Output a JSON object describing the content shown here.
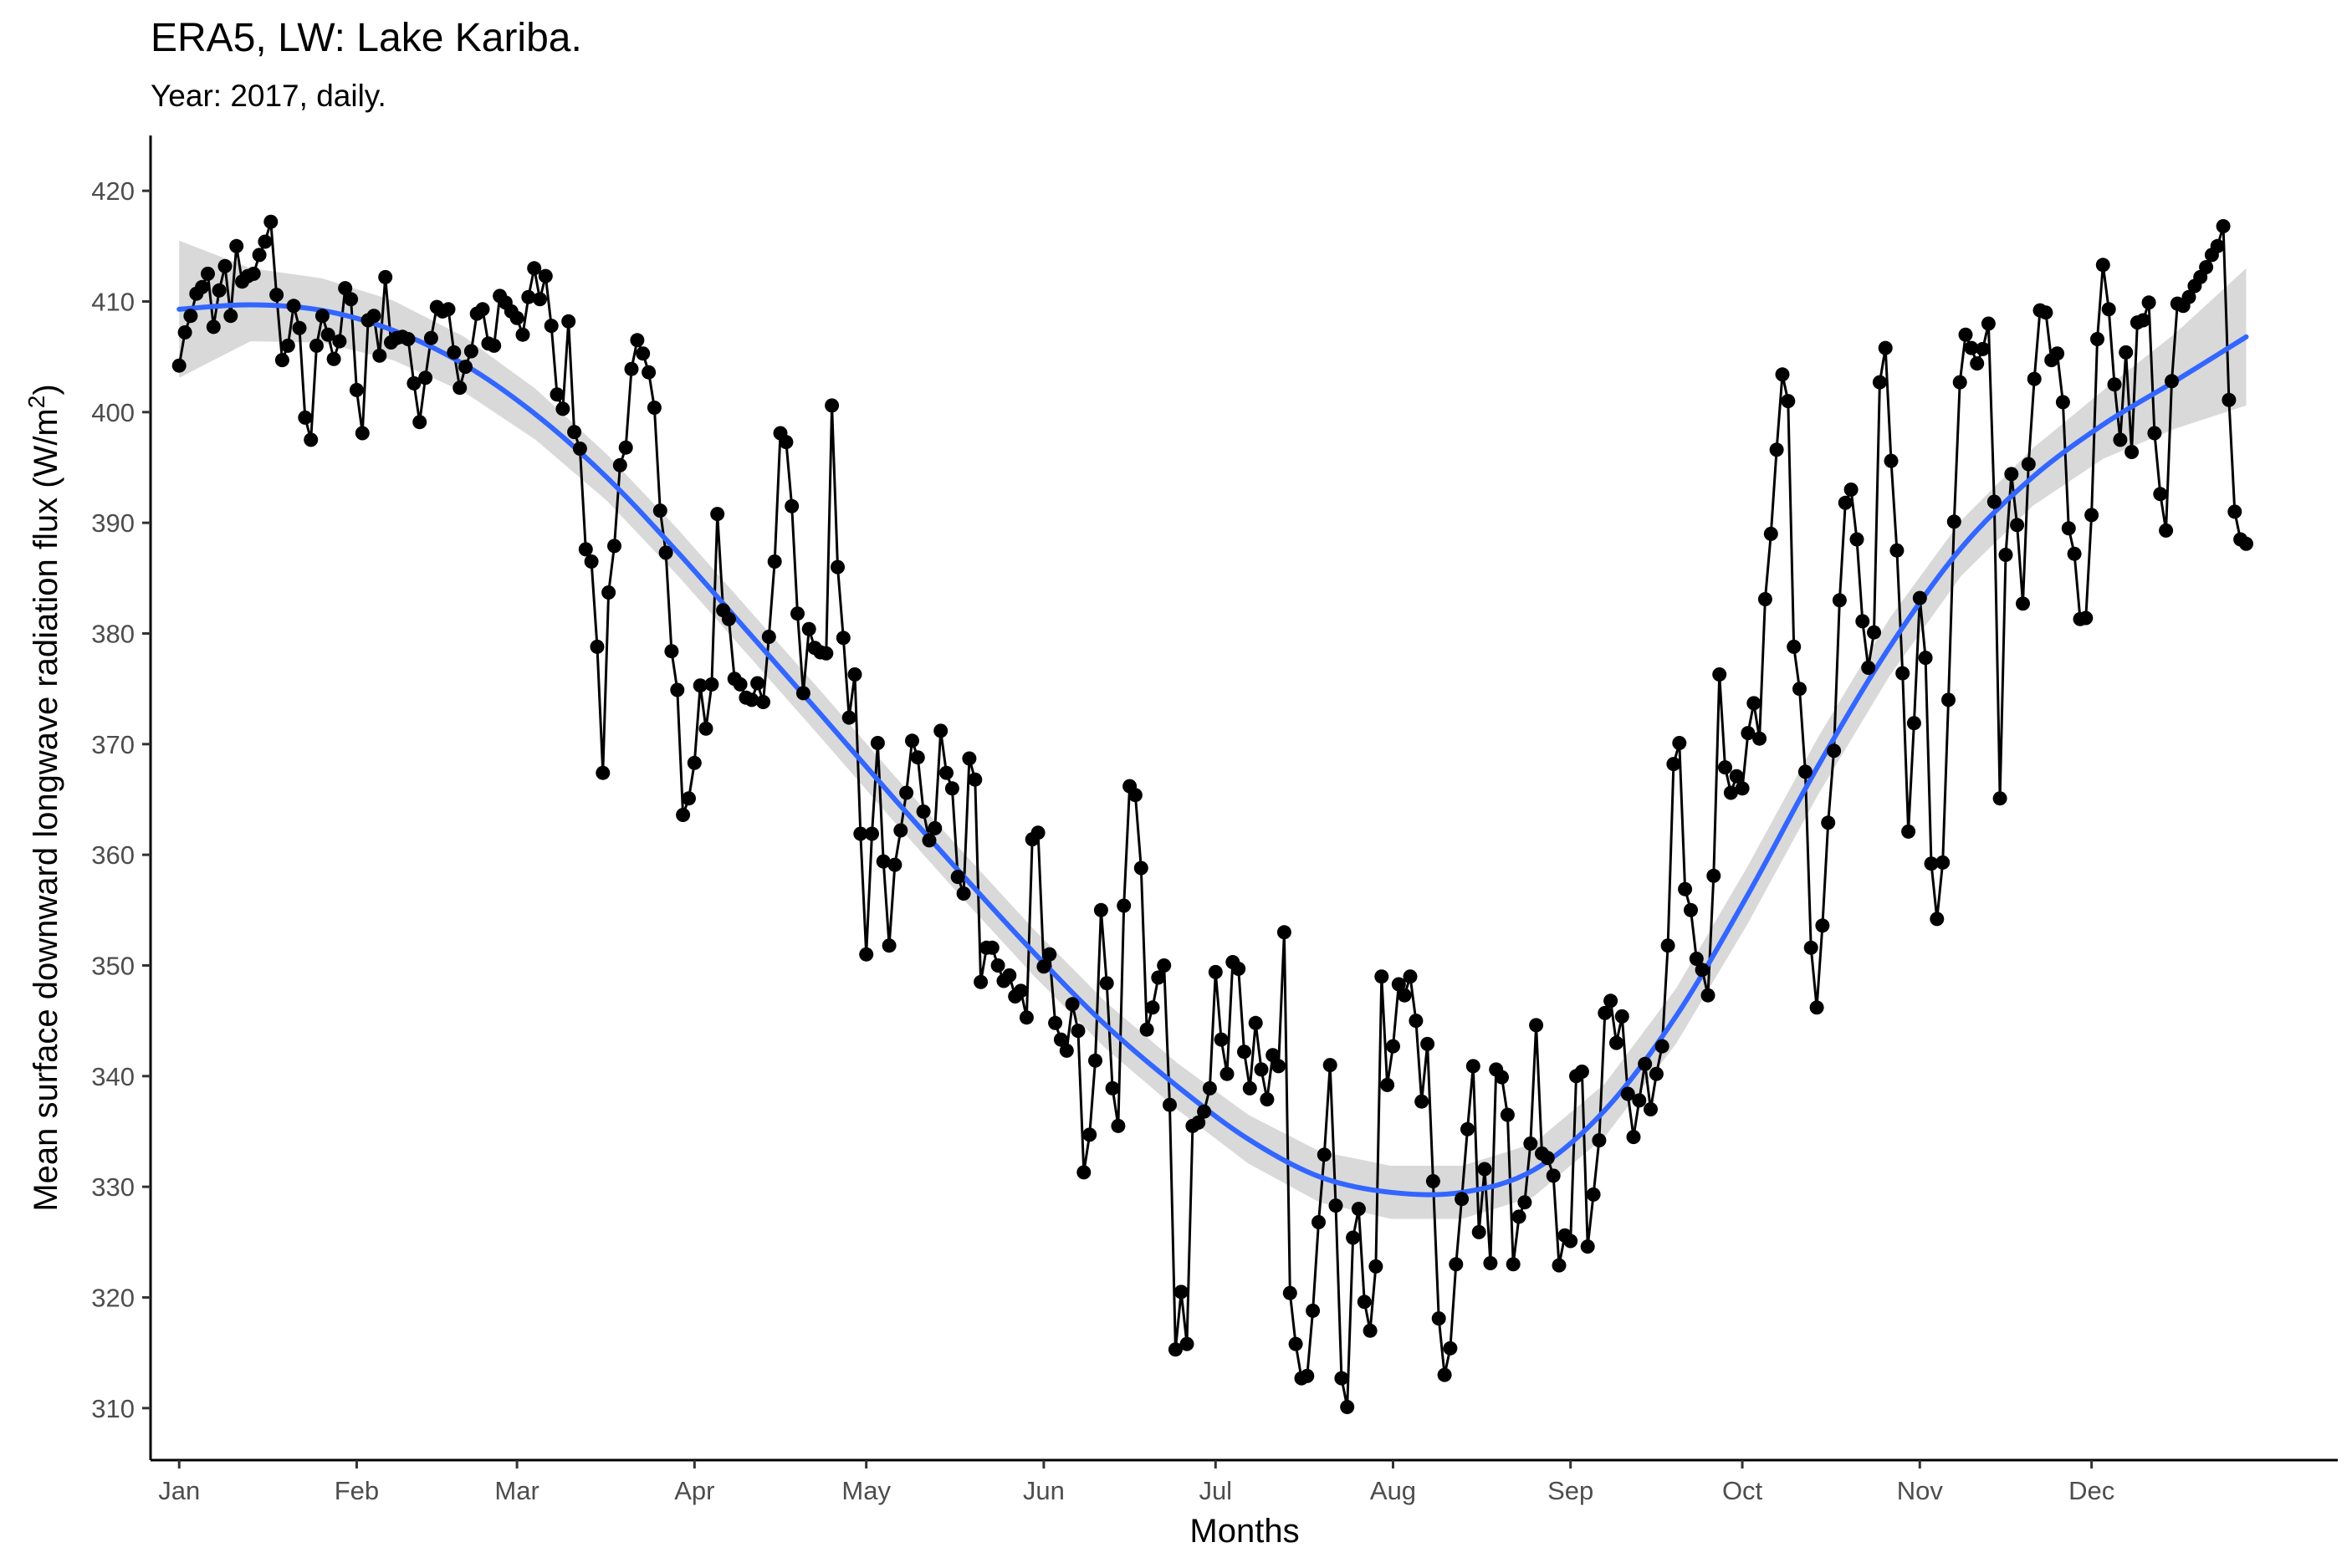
{
  "chart_data": {
    "type": "line",
    "title": "ERA5, LW: Lake Kariba.",
    "subtitle": "Year: 2017, daily.",
    "xlabel": "Months",
    "ylabel_main": "Mean surface downward longwave radiation flux (W/m",
    "ylabel_sup": "2",
    "ylabel_end": ")",
    "x_ticks": [
      "Jan",
      "Feb",
      "Mar",
      "Apr",
      "May",
      "Jun",
      "Jul",
      "Aug",
      "Sep",
      "Oct",
      "Nov",
      "Dec"
    ],
    "y_ticks": [
      310,
      320,
      330,
      340,
      350,
      360,
      370,
      380,
      390,
      400,
      410,
      420
    ],
    "ylim": [
      305.3,
      425.0
    ],
    "x_unit": "day of year 2017",
    "xlim": [
      -5,
      377
    ],
    "grid": false,
    "legend": "none",
    "colors": {
      "observed": "#000000",
      "smooth": "#3366ff",
      "band": "#d9d9d9"
    },
    "series": [
      {
        "values": [
          404.2,
          407.2,
          408.7,
          410.7,
          411.3,
          412.5,
          407.7,
          411.0,
          413.2,
          408.7,
          415.0,
          411.8,
          412.3,
          412.5,
          414.2,
          415.4,
          417.2,
          410.6,
          404.7,
          406.0,
          409.6,
          407.6,
          399.5,
          397.5,
          406.0,
          408.7,
          407.0,
          404.8,
          406.4,
          411.2,
          410.2,
          402.0,
          398.1,
          408.3,
          408.7,
          405.1,
          412.2,
          406.3,
          406.7,
          406.8,
          406.6,
          402.6,
          399.1,
          403.1,
          406.7,
          409.5,
          409.1,
          409.3,
          405.4,
          402.2,
          404.1,
          405.5,
          408.9,
          409.3,
          406.2,
          406.0,
          410.5,
          409.9,
          409.1,
          408.5,
          407.0,
          410.4,
          413.0,
          410.2,
          412.3,
          407.8,
          401.6,
          400.3,
          408.2,
          398.2,
          396.7,
          387.6,
          386.5,
          378.8,
          367.4,
          383.7,
          387.9,
          395.2,
          396.8,
          403.9,
          406.5,
          405.3,
          403.6,
          400.4,
          391.1,
          387.3,
          378.4,
          374.9,
          363.6,
          365.1,
          368.3,
          375.3,
          371.4,
          375.4,
          390.8,
          382.1,
          381.3,
          375.9,
          375.4,
          374.2,
          374.0,
          375.5,
          373.8,
          379.7,
          386.5,
          398.1,
          397.3,
          391.5,
          381.8,
          374.6,
          380.4,
          378.7,
          378.3,
          378.2,
          400.6,
          386.0,
          379.6,
          372.4,
          376.3,
          361.9,
          351.0,
          361.9,
          370.1,
          359.4,
          351.8,
          359.1,
          362.2,
          365.6,
          370.3,
          368.8,
          363.9,
          361.3,
          362.4,
          371.2,
          367.4,
          366.0,
          358.0,
          356.5,
          368.7,
          366.8,
          348.5,
          351.6,
          351.6,
          350.0,
          348.6,
          349.1,
          347.2,
          347.7,
          345.3,
          361.4,
          362.0,
          349.9,
          351.0,
          344.8,
          343.3,
          342.3,
          346.5,
          344.1,
          331.3,
          334.7,
          341.4,
          355.0,
          348.4,
          338.9,
          335.5,
          355.4,
          366.2,
          365.4,
          358.8,
          344.2,
          346.2,
          348.9,
          350.0,
          337.4,
          315.3,
          320.5,
          315.8,
          335.5,
          335.8,
          336.8,
          338.9,
          349.4,
          343.3,
          340.2,
          350.3,
          349.7,
          342.2,
          338.9,
          344.8,
          340.6,
          337.9,
          341.9,
          340.9,
          353.0,
          320.4,
          315.8,
          312.7,
          312.9,
          318.8,
          326.8,
          332.9,
          341.0,
          328.3,
          312.7,
          310.1,
          325.4,
          328.0,
          319.6,
          317.0,
          322.8,
          349.0,
          339.2,
          342.7,
          348.3,
          347.3,
          349.0,
          345.0,
          337.7,
          342.9,
          330.5,
          318.1,
          313.0,
          315.4,
          323.0,
          328.9,
          335.2,
          340.9,
          325.9,
          331.6,
          323.1,
          340.6,
          339.9,
          336.5,
          323.0,
          327.3,
          328.6,
          333.9,
          344.6,
          333.0,
          332.6,
          331.0,
          322.9,
          325.6,
          325.1,
          340.0,
          340.4,
          324.6,
          329.3,
          334.2,
          345.7,
          346.8,
          343.0,
          345.4,
          338.4,
          334.5,
          337.8,
          341.1,
          337.0,
          340.2,
          342.7,
          351.8,
          368.2,
          370.1,
          356.9,
          355.0,
          350.6,
          349.6,
          347.3,
          358.1,
          376.3,
          367.9,
          365.6,
          367.1,
          366.0,
          371.0,
          373.7,
          370.5,
          383.1,
          389.0,
          396.6,
          403.4,
          401.0,
          378.8,
          375.0,
          367.5,
          351.6,
          346.2,
          353.6,
          362.9,
          369.4,
          383.0,
          391.8,
          393.0,
          388.5,
          381.1,
          376.9,
          380.1,
          402.7,
          405.8,
          395.6,
          387.5,
          376.4,
          362.1,
          371.9,
          383.2,
          377.8,
          359.2,
          354.2,
          359.3,
          374.0,
          390.1,
          402.7,
          407.0,
          405.8,
          404.4,
          405.7,
          408.0,
          391.9,
          365.1,
          387.1,
          394.4,
          389.8,
          382.7,
          395.3,
          403.0,
          409.2,
          409.0,
          404.7,
          405.3,
          400.9,
          389.5,
          387.2,
          381.3,
          381.4,
          390.7,
          406.6,
          413.3,
          409.3,
          402.5,
          397.5,
          405.4,
          396.4,
          408.1,
          408.3,
          409.9,
          398.1,
          392.6,
          389.3,
          402.8,
          409.8,
          409.6,
          410.4,
          411.4,
          412.2,
          413.1,
          414.2,
          415.0,
          416.8,
          401.1,
          391.0,
          388.5,
          388.1
        ]
      },
      {
        "values": [
          409.3,
          409.7,
          409.2,
          407.4,
          404.3,
          399.8,
          394.1,
          387.3,
          380.0,
          372.7,
          365.3,
          358.1,
          351.1,
          344.6,
          339.1,
          334.3,
          330.9,
          329.5,
          329.5,
          331.5,
          336.9,
          345.4,
          356.3,
          368.1,
          378.8,
          387.7,
          394.1,
          398.9,
          402.8,
          406.8
        ],
        "band_half_width": [
          6.2,
          3.3,
          2.9,
          2.7,
          2.5,
          2.3,
          2.1,
          2.1,
          2.1,
          2.1,
          2.1,
          2.1,
          2.1,
          2.1,
          2.1,
          2.2,
          2.3,
          2.4,
          2.4,
          2.4,
          2.4,
          2.5,
          2.6,
          2.6,
          2.6,
          2.5,
          2.6,
          3.1,
          4.3,
          6.2
        ]
      }
    ]
  }
}
